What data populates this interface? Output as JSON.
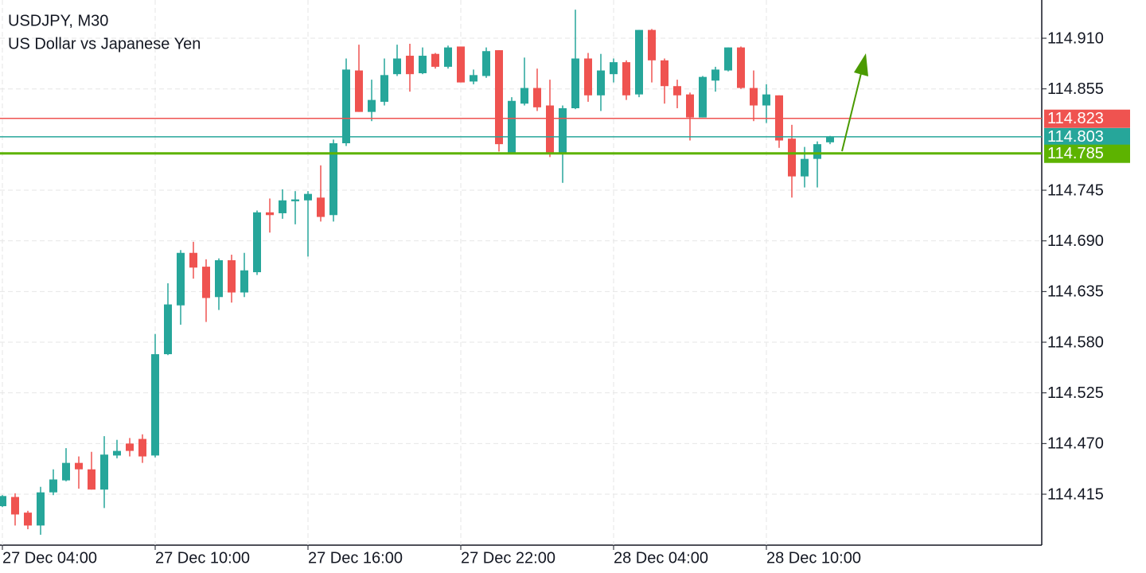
{
  "chart_data": {
    "type": "candlestick",
    "title": "USDJPY, M30",
    "subtitle": "US Dollar vs Japanese Yen",
    "categories": [
      "27 Dec 04:00",
      null,
      null,
      null,
      null,
      null,
      null,
      null,
      null,
      null,
      null,
      null,
      "27 Dec 10:00",
      null,
      null,
      null,
      null,
      null,
      null,
      null,
      null,
      null,
      null,
      null,
      "27 Dec 16:00",
      null,
      null,
      null,
      null,
      null,
      null,
      null,
      null,
      null,
      null,
      null,
      "27 Dec 22:00",
      null,
      null,
      null,
      null,
      null,
      null,
      null,
      null,
      null,
      null,
      null,
      "28 Dec 04:00",
      null,
      null,
      null,
      null,
      null,
      null,
      null,
      null,
      null,
      null,
      null,
      "28 Dec 10:00",
      null,
      null,
      null,
      null,
      null
    ],
    "open": [
      114.402,
      114.412,
      114.395,
      114.381,
      114.417,
      114.43,
      114.449,
      114.442,
      114.42,
      114.457,
      114.47,
      114.475,
      114.457,
      114.567,
      114.62,
      114.677,
      114.662,
      114.629,
      114.669,
      114.634,
      114.656,
      114.721,
      114.72,
      114.733,
      114.734,
      114.737,
      114.718,
      114.796,
      114.875,
      114.83,
      114.841,
      114.871,
      114.891,
      114.872,
      114.893,
      114.879,
      114.901,
      114.863,
      114.869,
      114.897,
      114.786,
      114.839,
      114.856,
      114.837,
      114.786,
      114.834,
      114.888,
      114.848,
      114.871,
      114.884,
      114.849,
      114.919,
      114.886,
      114.858,
      114.849,
      114.824,
      114.864,
      114.875,
      114.9,
      114.856,
      114.837,
      114.848,
      114.801,
      114.76,
      114.779,
      114.797
    ],
    "high": [
      114.414,
      114.416,
      114.397,
      114.423,
      114.442,
      114.465,
      114.456,
      114.461,
      114.478,
      114.474,
      114.476,
      114.48,
      114.589,
      114.644,
      114.68,
      114.689,
      114.67,
      114.671,
      114.675,
      114.677,
      114.723,
      114.736,
      114.746,
      114.744,
      114.744,
      114.772,
      114.8,
      114.888,
      114.903,
      114.865,
      114.888,
      114.903,
      114.904,
      114.9,
      114.894,
      114.902,
      114.901,
      114.876,
      114.9,
      114.897,
      114.846,
      114.889,
      114.877,
      114.865,
      114.837,
      114.941,
      114.894,
      114.893,
      114.888,
      114.886,
      114.919,
      114.92,
      114.888,
      114.865,
      114.851,
      114.869,
      114.879,
      114.9,
      114.901,
      114.875,
      114.86,
      114.848,
      114.816,
      114.792,
      114.798,
      114.804
    ],
    "low": [
      114.401,
      114.381,
      114.377,
      114.371,
      114.414,
      114.429,
      114.421,
      114.42,
      114.4,
      114.454,
      114.456,
      114.449,
      114.455,
      114.566,
      114.599,
      114.649,
      114.602,
      114.615,
      114.623,
      114.629,
      114.653,
      114.699,
      114.714,
      114.708,
      114.673,
      114.711,
      114.711,
      114.793,
      114.83,
      114.82,
      114.837,
      114.869,
      114.852,
      114.871,
      114.877,
      114.877,
      114.862,
      114.86,
      114.867,
      114.787,
      114.786,
      114.837,
      114.831,
      114.781,
      114.753,
      114.833,
      114.841,
      114.831,
      114.862,
      114.843,
      114.846,
      114.862,
      114.839,
      114.834,
      114.799,
      114.824,
      114.852,
      114.874,
      114.855,
      114.82,
      114.818,
      114.791,
      114.737,
      114.748,
      114.748,
      114.795
    ],
    "close": [
      114.413,
      114.393,
      114.381,
      114.417,
      114.431,
      114.449,
      114.442,
      114.42,
      114.458,
      114.462,
      114.462,
      114.456,
      114.567,
      114.621,
      114.677,
      114.661,
      114.628,
      114.669,
      114.634,
      114.658,
      114.721,
      114.718,
      114.734,
      114.735,
      114.741,
      114.716,
      114.796,
      114.876,
      114.83,
      114.843,
      114.87,
      114.888,
      114.871,
      114.891,
      114.879,
      114.9,
      114.862,
      114.87,
      114.896,
      114.795,
      114.842,
      114.856,
      114.835,
      114.785,
      114.834,
      114.888,
      114.848,
      114.875,
      114.884,
      114.848,
      114.919,
      114.886,
      114.858,
      114.848,
      114.824,
      114.868,
      114.876,
      114.9,
      114.856,
      114.837,
      114.849,
      114.799,
      114.76,
      114.779,
      114.795,
      114.803
    ],
    "up_color": "#26a69a",
    "down_color": "#ef5350",
    "ylim": [
      114.3597,
      114.9515
    ],
    "yticks": [
      114.415,
      {
        "value": 114.47,
        "label": "114.470"
      },
      114.525,
      {
        "value": 114.58,
        "label": "114.580"
      },
      114.635,
      {
        "value": 114.69,
        "label": "114.690"
      },
      114.745,
      114.855,
      {
        "value": 114.91,
        "label": "114.910"
      }
    ],
    "grid": true,
    "price_lines": [
      {
        "value": 114.823,
        "color": "#ef5350"
      },
      {
        "value": 114.803,
        "color": "#26a69a"
      },
      {
        "value": 114.785,
        "color": "#5db300"
      }
    ]
  }
}
